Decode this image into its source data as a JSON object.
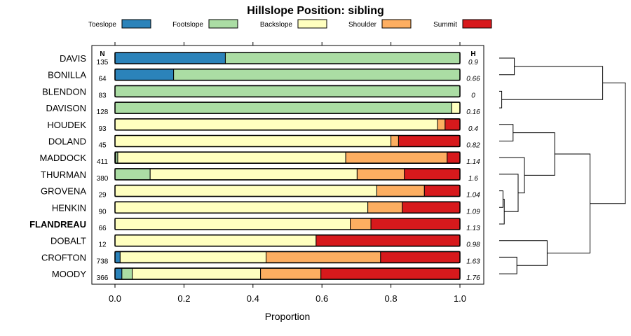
{
  "chart_data": {
    "type": "bar",
    "stacked": true,
    "orientation": "horizontal",
    "title": "Hillslope Position: sibling",
    "xlabel": "Proportion",
    "xlim": [
      0,
      1
    ],
    "xticks": [
      "0.0",
      "0.2",
      "0.4",
      "0.6",
      "0.8",
      "1.0"
    ],
    "n_header": "N",
    "h_header": "H",
    "legend_position": "top",
    "legend": [
      {
        "name": "Toeslope",
        "color": "#2b83ba"
      },
      {
        "name": "Footslope",
        "color": "#abdda4"
      },
      {
        "name": "Backslope",
        "color": "#ffffbf"
      },
      {
        "name": "Shoulder",
        "color": "#fdae61"
      },
      {
        "name": "Summit",
        "color": "#d7191c"
      }
    ],
    "categories": [
      "DAVIS",
      "BONILLA",
      "BLENDON",
      "DAVISON",
      "HOUDEK",
      "DOLAND",
      "MADDOCK",
      "THURMAN",
      "GROVENA",
      "HENKIN",
      "FLANDREAU",
      "DOBALT",
      "CROFTON",
      "MOODY"
    ],
    "highlight": "FLANDREAU",
    "n": [
      "135",
      "64",
      "83",
      "128",
      "93",
      "45",
      "411",
      "380",
      "29",
      "90",
      "66",
      "12",
      "738",
      "366"
    ],
    "h": [
      "0.9",
      "0.66",
      "0",
      "0.16",
      "0.4",
      "0.82",
      "1.14",
      "1.6",
      "1.04",
      "1.09",
      "1.13",
      "0.98",
      "1.63",
      "1.76"
    ],
    "series": [
      {
        "name": "Toeslope",
        "values": [
          0.32,
          0.17,
          0,
          0,
          0,
          0,
          0.002,
          0,
          0,
          0,
          0,
          0,
          0.015,
          0.02
        ]
      },
      {
        "name": "Footslope",
        "values": [
          0.68,
          0.83,
          1.0,
          0.976,
          0,
          0,
          0.006,
          0.102,
          0,
          0,
          0,
          0,
          0,
          0.03
        ]
      },
      {
        "name": "Backslope",
        "values": [
          0,
          0,
          0,
          0.024,
          0.935,
          0.8,
          0.661,
          0.6,
          0.759,
          0.733,
          0.682,
          0.583,
          0.423,
          0.372
        ]
      },
      {
        "name": "Shoulder",
        "values": [
          0,
          0,
          0,
          0,
          0.022,
          0.022,
          0.294,
          0.137,
          0.138,
          0.1,
          0.06,
          0,
          0.332,
          0.175
        ]
      },
      {
        "name": "Summit",
        "values": [
          0,
          0,
          0,
          0,
          0.043,
          0.178,
          0.037,
          0.161,
          0.103,
          0.167,
          0.258,
          0.417,
          0.23,
          0.403
        ]
      }
    ],
    "dendrogram": {
      "leaf_order": [
        "DAVIS",
        "BONILLA",
        "BLENDON",
        "DAVISON",
        "HOUDEK",
        "DOLAND",
        "MADDOCK",
        "THURMAN",
        "GROVENA",
        "HENKIN",
        "FLANDREAU",
        "DOBALT",
        "CROFTON",
        "MOODY"
      ],
      "merges": [
        {
          "left": "DAVIS",
          "right": "BONILLA",
          "height": 0.12
        },
        {
          "left": "BLENDON",
          "right": "DAVISON",
          "height": 0.02
        },
        {
          "left": "m0",
          "right": "m1",
          "height": 0.82
        },
        {
          "left": "HOUDEK",
          "right": "DOLAND",
          "height": 0.11
        },
        {
          "left": "GROVENA",
          "right": "HENKIN",
          "height": 0.03
        },
        {
          "left": "m4",
          "right": "FLANDREAU",
          "height": 0.04
        },
        {
          "left": "THURMAN",
          "right": "m5",
          "height": 0.15
        },
        {
          "left": "MADDOCK",
          "right": "m6",
          "height": 0.2
        },
        {
          "left": "m3",
          "right": "m7",
          "height": 0.44
        },
        {
          "left": "CROFTON",
          "right": "MOODY",
          "height": 0.14
        },
        {
          "left": "DOBALT",
          "right": "m9",
          "height": 0.38
        },
        {
          "left": "m8",
          "right": "m10",
          "height": 0.72
        },
        {
          "left": "m2",
          "right": "m11",
          "height": 1.0
        }
      ]
    }
  }
}
